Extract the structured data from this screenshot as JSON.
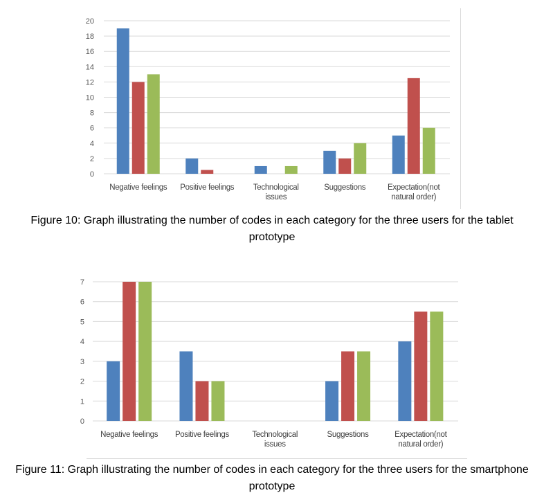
{
  "colors": {
    "series1": "#4e81bd",
    "series2": "#c0504d",
    "series3": "#9bbb59",
    "grid": "#d9d9d9",
    "text": "#595959"
  },
  "chart_data": [
    {
      "type": "bar",
      "caption": "Figure 10: Graph illustrating the number of codes in each category for the three users for the tablet prototype",
      "categories": [
        [
          "Negative feelings"
        ],
        [
          "Positive feelings"
        ],
        [
          "Technological",
          "issues"
        ],
        [
          "Suggestions"
        ],
        [
          "Expectation(not",
          "natural order)"
        ]
      ],
      "series": [
        {
          "values": [
            19,
            2,
            1,
            3,
            5
          ]
        },
        {
          "values": [
            12,
            0.5,
            0,
            2,
            12.5
          ]
        },
        {
          "values": [
            13,
            0,
            1,
            4,
            6
          ]
        }
      ],
      "ylim": [
        0,
        20
      ],
      "yticks": [
        0,
        2,
        4,
        6,
        8,
        10,
        12,
        14,
        16,
        18,
        20
      ],
      "grid": true
    },
    {
      "type": "bar",
      "caption": "Figure 11: Graph illustrating the number of codes in each category for the three users for the smartphone prototype",
      "categories": [
        [
          "Negative feelings"
        ],
        [
          "Positive feelings"
        ],
        [
          "Technological",
          "issues"
        ],
        [
          "Suggestions"
        ],
        [
          "Expectation(not",
          "natural order)"
        ]
      ],
      "series": [
        {
          "values": [
            3,
            3.5,
            0,
            2,
            4
          ]
        },
        {
          "values": [
            7,
            2,
            0,
            3.5,
            5.5
          ]
        },
        {
          "values": [
            7,
            2,
            0,
            3.5,
            5.5
          ]
        }
      ],
      "ylim": [
        0,
        7
      ],
      "yticks": [
        0,
        1,
        2,
        3,
        4,
        5,
        6,
        7
      ],
      "grid": true
    }
  ]
}
